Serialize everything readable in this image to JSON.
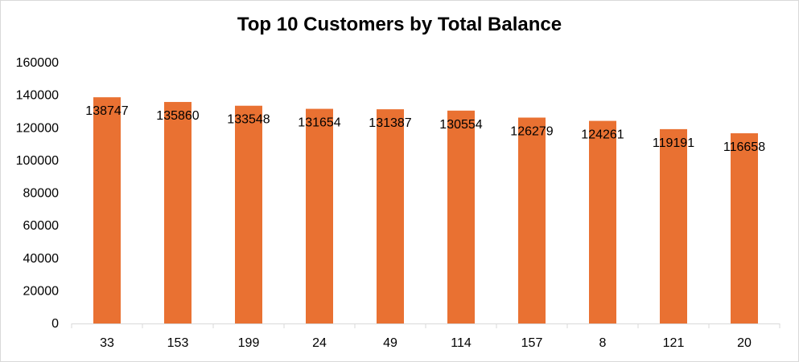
{
  "chart_data": {
    "type": "bar",
    "title": "Top 10 Customers by Total Balance",
    "xlabel": "",
    "ylabel": "",
    "categories": [
      "33",
      "153",
      "199",
      "24",
      "49",
      "114",
      "157",
      "8",
      "121",
      "20"
    ],
    "values": [
      138747,
      135860,
      133548,
      131654,
      131387,
      130554,
      126279,
      124261,
      119191,
      116658
    ],
    "ylim": [
      0,
      160000
    ],
    "yticks": [
      "0",
      "20000",
      "40000",
      "60000",
      "80000",
      "100000",
      "120000",
      "140000",
      "160000"
    ],
    "grid": false,
    "legend": "none",
    "bar_color": "#E97132"
  }
}
